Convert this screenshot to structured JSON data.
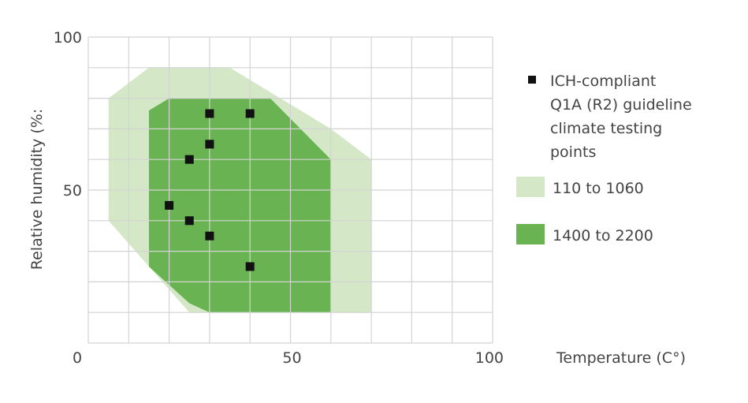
{
  "colors": {
    "grid": "#d3d3d3",
    "grid_strong": "#a8a8a8",
    "axis_text": "#444444",
    "band_light": "#d4e8c8",
    "band_dark": "#69b352",
    "marker": "#111111"
  },
  "chart_data": {
    "type": "area",
    "xlabel": "Temperature (C°)",
    "ylabel": "Relative humidity (%:",
    "xlim": [
      0,
      100
    ],
    "ylim": [
      0,
      100
    ],
    "x_ticks": [
      {
        "value": 0,
        "label": "0"
      },
      {
        "value": 50,
        "label": "50"
      },
      {
        "value": 100,
        "label": "100"
      }
    ],
    "y_ticks": [
      {
        "value": 50,
        "label": "50"
      },
      {
        "value": 100,
        "label": "100"
      }
    ],
    "grid_step": 10,
    "grid": true,
    "legend_position": "right",
    "regions": [
      {
        "name": "110 to 1060",
        "color": "#d4e8c8",
        "polygon": [
          [
            5,
            80
          ],
          [
            15,
            90
          ],
          [
            35,
            90
          ],
          [
            60,
            70
          ],
          [
            70,
            60
          ],
          [
            70,
            10
          ],
          [
            25,
            10
          ],
          [
            5,
            40
          ]
        ]
      },
      {
        "name": "1400 to 2200",
        "color": "#69b352",
        "polygon": [
          [
            15,
            76
          ],
          [
            20,
            80
          ],
          [
            45,
            80
          ],
          [
            60,
            60
          ],
          [
            60,
            10
          ],
          [
            30,
            10
          ],
          [
            25,
            13
          ],
          [
            15,
            25
          ]
        ]
      }
    ],
    "points_series": {
      "name": "ICH-compliant Q1A (R2) guideline climate testing points",
      "label_lines": [
        "ICH-compliant",
        "Q1A (R2) guideline",
        "climate testing",
        "points"
      ],
      "color": "#111111",
      "points": [
        {
          "x": 30,
          "y": 75
        },
        {
          "x": 40,
          "y": 75
        },
        {
          "x": 30,
          "y": 65
        },
        {
          "x": 25,
          "y": 60
        },
        {
          "x": 20,
          "y": 45
        },
        {
          "x": 25,
          "y": 40
        },
        {
          "x": 30,
          "y": 35
        },
        {
          "x": 40,
          "y": 25
        }
      ]
    }
  }
}
